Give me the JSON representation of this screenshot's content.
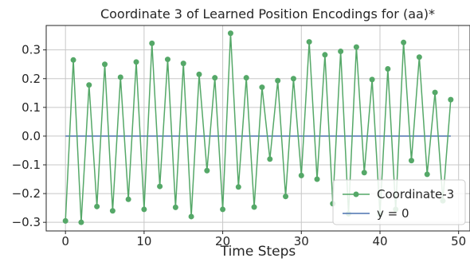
{
  "chart_data": {
    "type": "line",
    "title": "Coordinate 3 of Learned Position Encodings for (aa)*",
    "xlabel": "Time Steps",
    "ylabel": "",
    "xlim": [
      -2.45,
      51.45
    ],
    "ylim": [
      -0.33,
      0.385
    ],
    "xticks": [
      0,
      10,
      20,
      30,
      40,
      50
    ],
    "xtick_labels": [
      "0",
      "10",
      "20",
      "30",
      "40",
      "50"
    ],
    "yticks": [
      -0.3,
      -0.2,
      -0.1,
      0.0,
      0.1,
      0.2,
      0.3
    ],
    "ytick_labels": [
      "−0.3",
      "−0.2",
      "−0.1",
      "0.0",
      "0.1",
      "0.2",
      "0.3"
    ],
    "grid": true,
    "legend_position": "lower-right",
    "x": [
      0,
      1,
      2,
      3,
      4,
      5,
      6,
      7,
      8,
      9,
      10,
      11,
      12,
      13,
      14,
      15,
      16,
      17,
      18,
      19,
      20,
      21,
      22,
      23,
      24,
      25,
      26,
      27,
      28,
      29,
      30,
      31,
      32,
      33,
      34,
      35,
      36,
      37,
      38,
      39,
      40,
      41,
      42,
      43,
      44,
      45,
      46,
      47,
      48,
      49
    ],
    "series": [
      {
        "name": "Coordinate-3",
        "color": "#55a868",
        "marker": "circle",
        "values": [
          -0.295,
          0.265,
          -0.3,
          0.178,
          -0.245,
          0.25,
          -0.26,
          0.205,
          -0.22,
          0.258,
          -0.255,
          0.323,
          -0.175,
          0.267,
          -0.248,
          0.253,
          -0.28,
          0.215,
          -0.12,
          0.203,
          -0.255,
          0.358,
          -0.177,
          0.203,
          -0.247,
          0.17,
          -0.08,
          0.193,
          -0.21,
          0.2,
          -0.137,
          0.328,
          -0.15,
          0.283,
          -0.235,
          0.295,
          -0.27,
          0.31,
          -0.127,
          0.197,
          -0.272,
          0.234,
          -0.255,
          0.326,
          -0.085,
          0.275,
          -0.133,
          0.152,
          -0.225,
          0.127
        ]
      },
      {
        "name": "y = 0",
        "color": "#4c72b0",
        "marker": "none",
        "values": [
          0,
          0,
          0,
          0,
          0,
          0,
          0,
          0,
          0,
          0,
          0,
          0,
          0,
          0,
          0,
          0,
          0,
          0,
          0,
          0,
          0,
          0,
          0,
          0,
          0,
          0,
          0,
          0,
          0,
          0,
          0,
          0,
          0,
          0,
          0,
          0,
          0,
          0,
          0,
          0,
          0,
          0,
          0,
          0,
          0,
          0,
          0,
          0,
          0,
          0
        ]
      }
    ]
  }
}
